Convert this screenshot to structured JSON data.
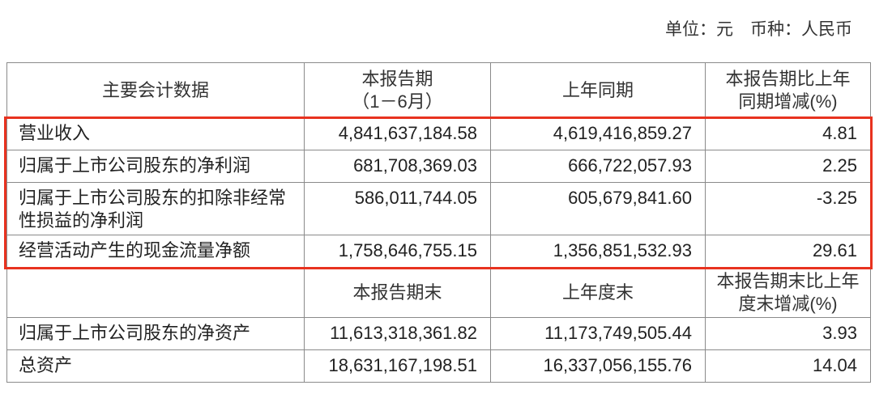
{
  "unit_note": "单位：元　币种：人民币",
  "highlight_color": "#e8321f",
  "header1": [
    "主要会计数据",
    "本报告期\n（1－6月）",
    "上年同期",
    "本报告期比上年\n同期增减(%)"
  ],
  "rows1": [
    {
      "label": "营业收入",
      "current": "4,841,637,184.58",
      "prior": "4,619,416,859.27",
      "change": "4.81"
    },
    {
      "label": "归属于上市公司股东的净利润",
      "current": "681,708,369.03",
      "prior": "666,722,057.93",
      "change": "2.25"
    },
    {
      "label": "归属于上市公司股东的扣除非经常性损益的净利润",
      "current": "586,011,744.05",
      "prior": "605,679,841.60",
      "change": "-3.25"
    },
    {
      "label": "经营活动产生的现金流量净额",
      "current": "1,758,646,755.15",
      "prior": "1,356,851,532.93",
      "change": "29.61"
    }
  ],
  "header2": [
    "",
    "本报告期末",
    "上年度末",
    "本报告期末比上年度末增减(%)"
  ],
  "rows2": [
    {
      "label": "归属于上市公司股东的净资产",
      "current": "11,613,318,361.82",
      "prior": "11,173,749,505.44",
      "change": "3.93"
    },
    {
      "label": "总资产",
      "current": "18,631,167,198.51",
      "prior": "16,337,056,155.76",
      "change": "14.04"
    }
  ]
}
